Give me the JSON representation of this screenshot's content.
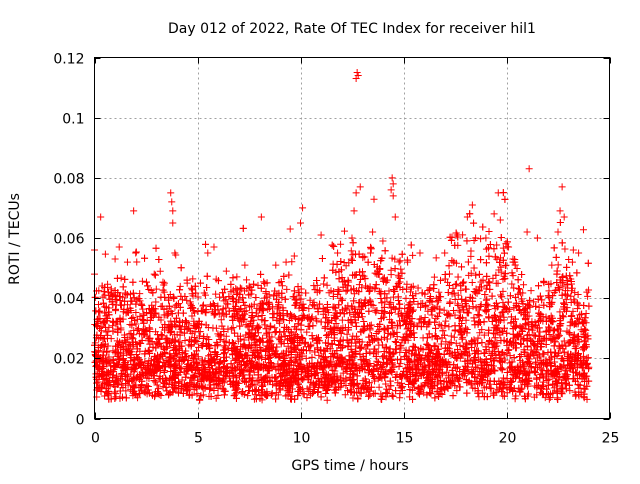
{
  "chart_data": {
    "type": "scatter",
    "title": "Day 012 of 2022, Rate Of TEC Index for receiver hil1",
    "xlabel": "GPS time / hours",
    "ylabel": "ROTI / TECUs",
    "xlim": [
      0,
      25
    ],
    "ylim": [
      0,
      0.12
    ],
    "x_ticks": [
      "0",
      "5",
      "10",
      "15",
      "20",
      "25"
    ],
    "x_tick_values": [
      0,
      5,
      10,
      15,
      20,
      25
    ],
    "y_ticks": [
      "0",
      "0.02",
      "0.04",
      "0.06",
      "0.08",
      "0.1",
      "0.12"
    ],
    "y_tick_values": [
      0,
      0.02,
      0.04,
      0.06,
      0.08,
      0.1,
      0.12
    ],
    "grid": true,
    "marker": "plus",
    "color": "#ff0000",
    "x_range_of_data": [
      0,
      24
    ],
    "series": [
      {
        "points": [
          [
            0.0,
            0.048
          ],
          [
            0.0,
            0.056
          ],
          [
            0.3,
            0.067
          ],
          [
            0.5,
            0.041
          ],
          [
            1.0,
            0.053
          ],
          [
            1.2,
            0.057
          ],
          [
            1.6,
            0.052
          ],
          [
            1.9,
            0.069
          ],
          [
            2.0,
            0.055
          ],
          [
            2.9,
            0.048
          ],
          [
            3.0,
            0.043
          ],
          [
            3.4,
            0.045
          ],
          [
            3.7,
            0.075
          ],
          [
            3.75,
            0.072
          ],
          [
            3.8,
            0.069
          ],
          [
            3.8,
            0.065
          ],
          [
            3.9,
            0.055
          ],
          [
            4.5,
            0.045
          ],
          [
            5.5,
            0.055
          ],
          [
            5.8,
            0.057
          ],
          [
            6.4,
            0.049
          ],
          [
            7.3,
            0.051
          ],
          [
            8.1,
            0.067
          ],
          [
            8.8,
            0.051
          ],
          [
            9.3,
            0.052
          ],
          [
            9.5,
            0.063
          ],
          [
            9.7,
            0.054
          ],
          [
            10.0,
            0.065
          ],
          [
            10.1,
            0.07
          ],
          [
            11.0,
            0.061
          ],
          [
            11.8,
            0.055
          ],
          [
            12.5,
            0.06
          ],
          [
            12.6,
            0.069
          ],
          [
            12.7,
            0.075
          ],
          [
            12.7,
            0.113
          ],
          [
            12.75,
            0.115
          ],
          [
            12.8,
            0.114
          ],
          [
            12.9,
            0.077
          ],
          [
            13.4,
            0.055
          ],
          [
            13.5,
            0.062
          ],
          [
            13.7,
            0.048
          ],
          [
            14.0,
            0.059
          ],
          [
            14.4,
            0.076
          ],
          [
            14.45,
            0.08
          ],
          [
            14.5,
            0.078
          ],
          [
            14.5,
            0.074
          ],
          [
            14.6,
            0.067
          ],
          [
            15.2,
            0.052
          ],
          [
            15.8,
            0.055
          ],
          [
            16.5,
            0.047
          ],
          [
            17.0,
            0.055
          ],
          [
            17.6,
            0.061
          ],
          [
            18.1,
            0.067
          ],
          [
            18.5,
            0.06
          ],
          [
            19.0,
            0.06
          ],
          [
            19.4,
            0.068
          ],
          [
            19.6,
            0.075
          ],
          [
            19.7,
            0.066
          ],
          [
            20.1,
            0.057
          ],
          [
            20.4,
            0.052
          ],
          [
            21.0,
            0.062
          ],
          [
            21.1,
            0.083
          ],
          [
            21.5,
            0.06
          ],
          [
            22.2,
            0.051
          ],
          [
            22.5,
            0.062
          ],
          [
            22.6,
            0.069
          ],
          [
            22.7,
            0.077
          ],
          [
            22.8,
            0.067
          ],
          [
            23.2,
            0.052
          ],
          [
            23.5,
            0.055
          ],
          [
            23.9,
            0.042
          ]
        ]
      }
    ]
  }
}
